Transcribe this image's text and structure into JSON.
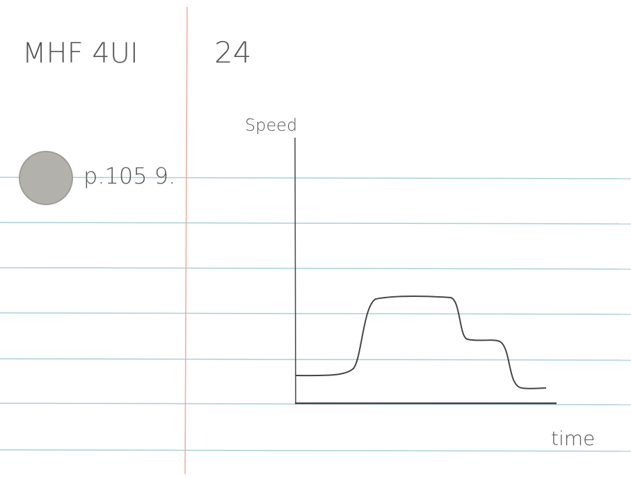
{
  "header": {
    "course": "MHF 4UI",
    "page": "24"
  },
  "note": {
    "reference": "p.105 9."
  },
  "sketch": {
    "y_axis_label": "Speed",
    "x_axis_label": "time"
  }
}
